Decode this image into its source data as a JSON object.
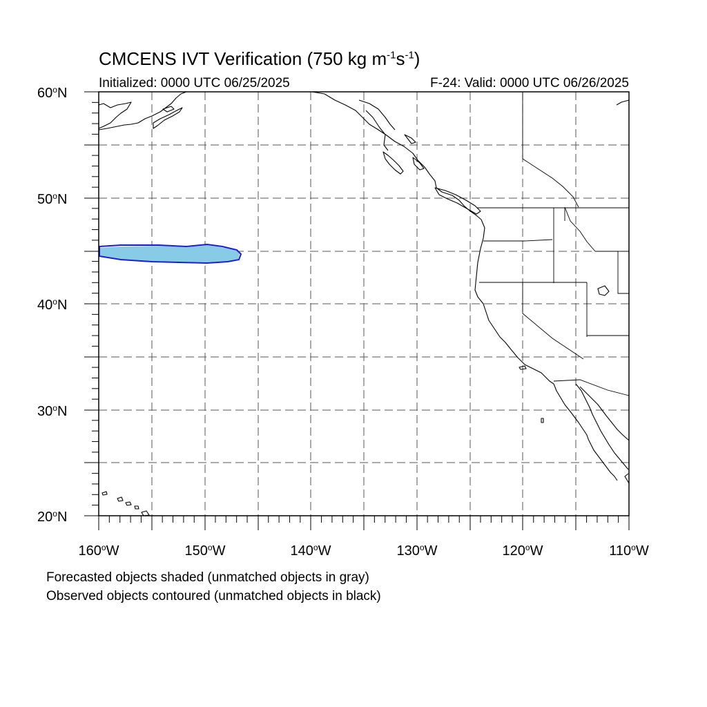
{
  "title": {
    "prefix": "CMCENS IVT Verification (750 kg m",
    "sup1": "-1",
    "mid": "s",
    "sup2": "-1",
    "suffix": ")"
  },
  "subtitle": {
    "initialized": "Initialized: 0000 UTC 06/25/2025",
    "valid": "F-24: Valid: 0000 UTC 06/26/2025"
  },
  "map": {
    "lat_range": [
      20,
      60
    ],
    "lon_range": [
      -160,
      -110
    ],
    "grid_lines": "dashed",
    "lat_ticks": [
      {
        "value": "60",
        "hemi": "N"
      },
      {
        "value": "50",
        "hemi": "N"
      },
      {
        "value": "40",
        "hemi": "N"
      },
      {
        "value": "30",
        "hemi": "N"
      },
      {
        "value": "20",
        "hemi": "N"
      }
    ],
    "lon_ticks": [
      {
        "value": "160",
        "hemi": "W"
      },
      {
        "value": "150",
        "hemi": "W"
      },
      {
        "value": "140",
        "hemi": "W"
      },
      {
        "value": "130",
        "hemi": "W"
      },
      {
        "value": "120",
        "hemi": "W"
      },
      {
        "value": "110",
        "hemi": "W"
      }
    ],
    "degree_symbol": "o",
    "colors": {
      "forecast_fill": "#87cbe6",
      "observed_contour": "#1c1ccf",
      "coastline": "#000000",
      "grid": "#555555"
    },
    "objects": [
      {
        "type": "forecast-shaded",
        "matched": true,
        "lat_center": 44.8,
        "lon_min": -160,
        "lon_max": -146.8
      },
      {
        "type": "observed-contour",
        "matched": true,
        "lat_center": 44.8,
        "lon_min": -160,
        "lon_max": -146.7
      }
    ]
  },
  "legend": {
    "line1": "Forecasted objects shaded (unmatched objects in gray)",
    "line2": "Observed objects contoured (unmatched objects in black)"
  }
}
